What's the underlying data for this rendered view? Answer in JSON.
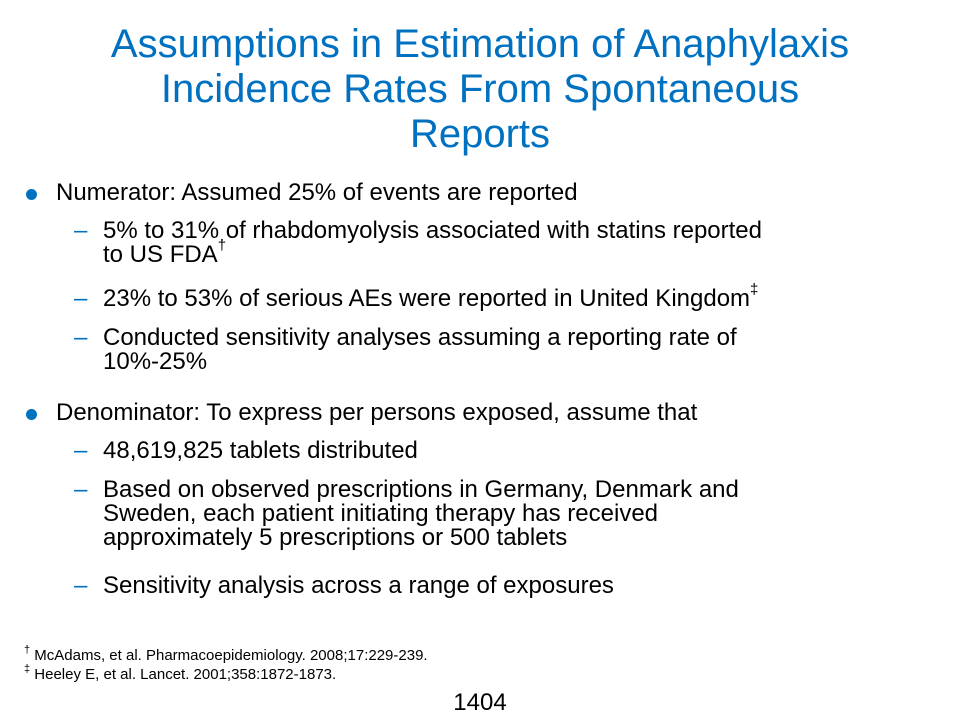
{
  "title": {
    "line1": "Assumptions in Estimation of Anaphylaxis",
    "line2": "Incidence Rates From Spontaneous",
    "line3": "Reports"
  },
  "bullets": [
    {
      "text": "Numerator: Assumed 25% of events are reported",
      "subs": [
        {
          "line1": "5% to 31% of rhabdomyolysis associated with statins reported",
          "line2": "to US FDA",
          "mark": "†"
        },
        {
          "line1": "23% to 53% of serious AEs were reported in United Kingdom",
          "mark": "‡"
        },
        {
          "line1": "Conducted sensitivity analyses assuming a reporting rate of",
          "line2": "10%-25%"
        }
      ]
    },
    {
      "text": "Denominator: To express per persons exposed, assume that",
      "subs": [
        {
          "line1": "48,619,825 tablets distributed"
        },
        {
          "line1": "Based on observed prescriptions in Germany, Denmark and",
          "line2": "Sweden, each patient initiating therapy has received",
          "line3": "approximately 5 prescriptions or 500 tablets"
        },
        {
          "line1": "Sensitivity analysis across a range of exposures"
        }
      ]
    }
  ],
  "dash": "–",
  "footnotes": [
    {
      "mark": "†",
      "text": " McAdams, et al. Pharmacoepidemiology. 2008;17:229-239."
    },
    {
      "mark": "‡",
      "text": " Heeley E, et al. Lancet. 2001;358:1872-1873."
    }
  ],
  "page_number": "1404",
  "colors": {
    "accent": "#0070c0",
    "text": "#000000",
    "background": "#ffffff"
  }
}
